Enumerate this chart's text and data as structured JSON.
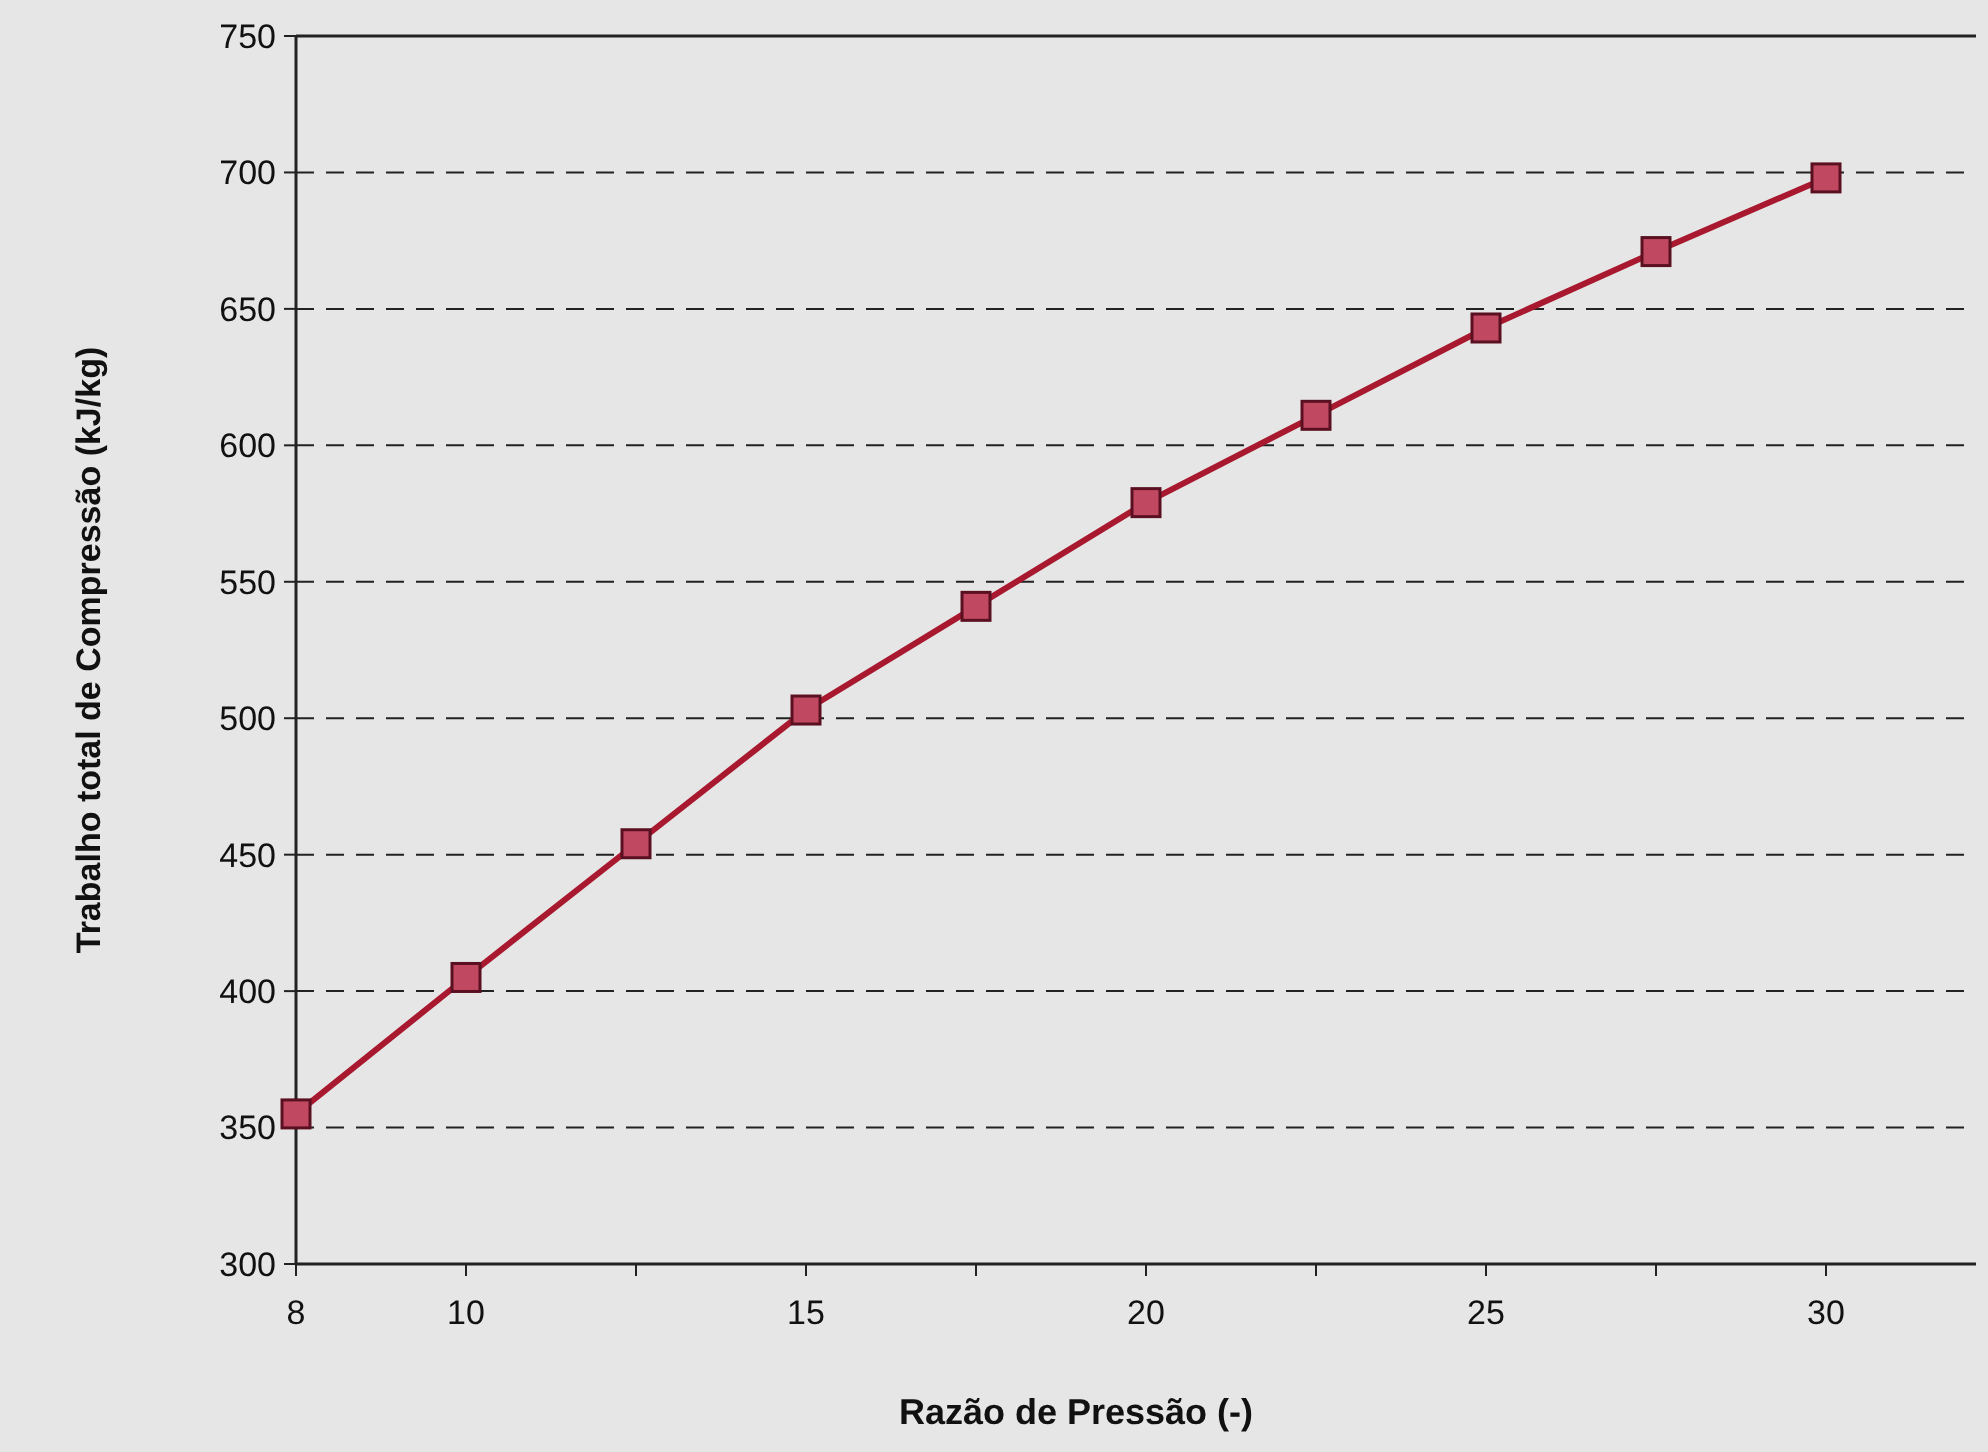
{
  "chart_data": {
    "type": "line",
    "xlabel": "Razão de Pressão (-)",
    "ylabel": "Trabalho total de Compressão (kJ/kg)",
    "categories": [
      "8",
      "10",
      null,
      "15",
      null,
      "20",
      null,
      "25",
      null,
      "30"
    ],
    "series": [
      {
        "color": "#a8182e",
        "values": [
          355,
          405,
          454,
          503,
          541,
          579,
          611,
          643,
          671,
          698
        ]
      }
    ],
    "ylim": [
      300,
      750
    ],
    "yticks": [
      300,
      350,
      400,
      450,
      500,
      550,
      600,
      650,
      700,
      750
    ],
    "grid": "y",
    "marker": "square",
    "line_style": "solid"
  }
}
